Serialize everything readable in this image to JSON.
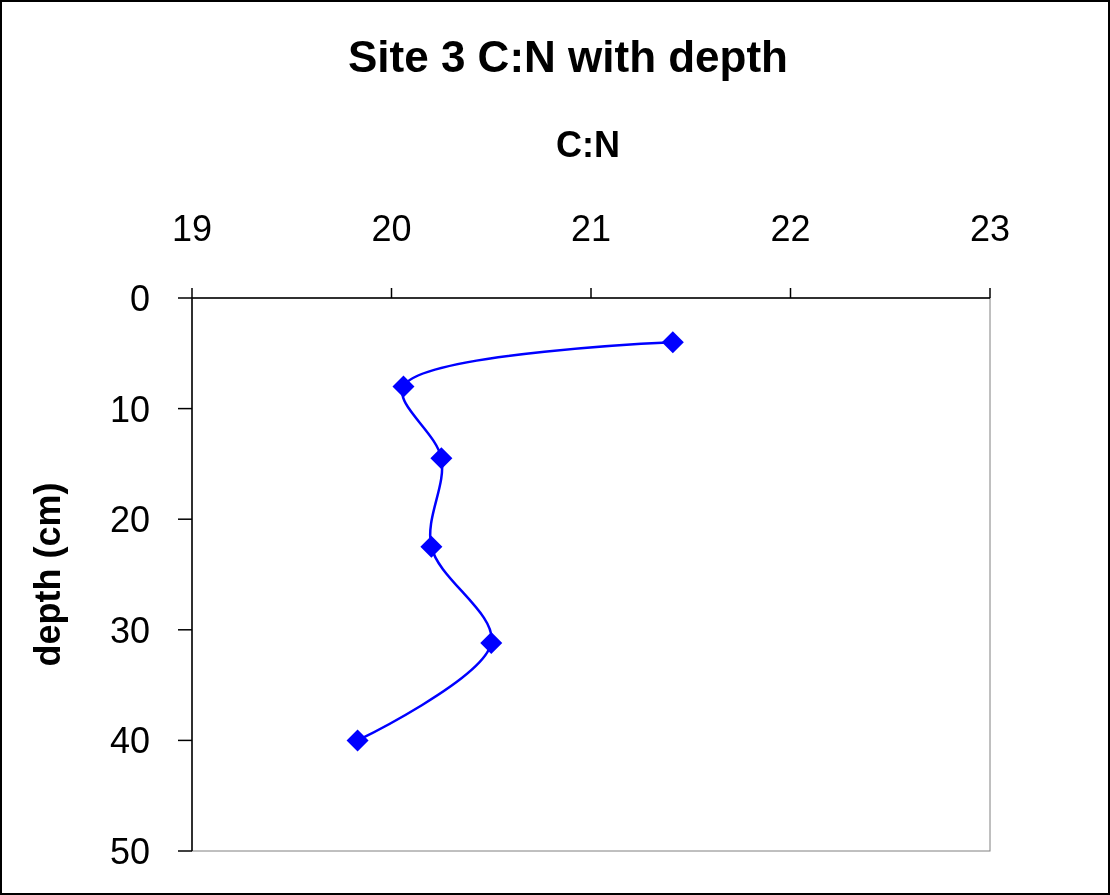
{
  "chart_data": {
    "type": "line",
    "title": "Site 3 C:N with depth",
    "xlabel": "C:N",
    "ylabel": "depth (cm)",
    "series": [
      {
        "color": "#0000ff",
        "x": [
          21.41,
          20.06,
          20.25,
          20.2,
          20.5,
          19.83
        ],
        "values": [
          4,
          8,
          14.5,
          22.5,
          31.2,
          40
        ]
      }
    ],
    "xlim": [
      19,
      23
    ],
    "xticks": [
      19,
      20,
      21,
      22,
      23
    ],
    "ylim": [
      50,
      0
    ],
    "yticks": [
      0,
      10,
      20,
      30,
      40,
      50
    ],
    "marker": "diamond",
    "line_style": "solid",
    "grid": false
  }
}
